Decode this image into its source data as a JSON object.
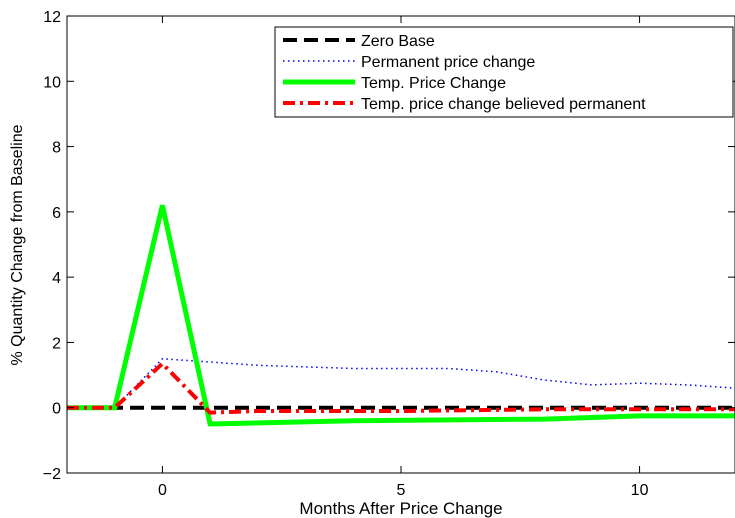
{
  "chart_data": {
    "type": "line",
    "xlabel": "Months After Price Change",
    "ylabel": "% Quantity Change from Baseline",
    "xlim": [
      -2,
      12
    ],
    "ylim": [
      -2,
      12
    ],
    "x_ticks": [
      0,
      5,
      10
    ],
    "x_tick_labels": [
      "0",
      "5",
      "10"
    ],
    "y_ticks": [
      -2,
      0,
      2,
      4,
      6,
      8,
      10,
      12
    ],
    "y_tick_labels": [
      "−2",
      "0",
      "2",
      "4",
      "6",
      "8",
      "10",
      "12"
    ],
    "grid": false,
    "legend_position": "top-right",
    "series": [
      {
        "name": "Zero Base",
        "color": "#000000",
        "style": "dashed",
        "x": [
          -2,
          12
        ],
        "y": [
          0,
          0
        ]
      },
      {
        "name": "Permanent price change",
        "color": "#0000ff",
        "style": "dotted",
        "x": [
          -2,
          -1,
          0,
          1,
          2,
          3,
          4,
          5,
          6,
          7,
          8,
          9,
          10,
          11,
          12
        ],
        "y": [
          0,
          0,
          1.5,
          1.4,
          1.3,
          1.25,
          1.2,
          1.2,
          1.2,
          1.1,
          0.85,
          0.7,
          0.75,
          0.7,
          0.6
        ]
      },
      {
        "name": "Temp. Price Change",
        "color": "#00ff00",
        "style": "solid",
        "x": [
          -2,
          -1,
          0,
          1,
          4,
          8,
          10,
          12
        ],
        "y": [
          0,
          0,
          6.2,
          -0.5,
          -0.4,
          -0.35,
          -0.25,
          -0.25
        ]
      },
      {
        "name": "Temp. price change believed permanent",
        "color": "#ff0000",
        "style": "dashdot",
        "x": [
          -2,
          -1,
          0,
          1,
          2,
          5,
          8,
          10,
          12
        ],
        "y": [
          0,
          0,
          1.35,
          -0.15,
          -0.1,
          -0.1,
          -0.05,
          -0.05,
          -0.05
        ]
      }
    ]
  }
}
